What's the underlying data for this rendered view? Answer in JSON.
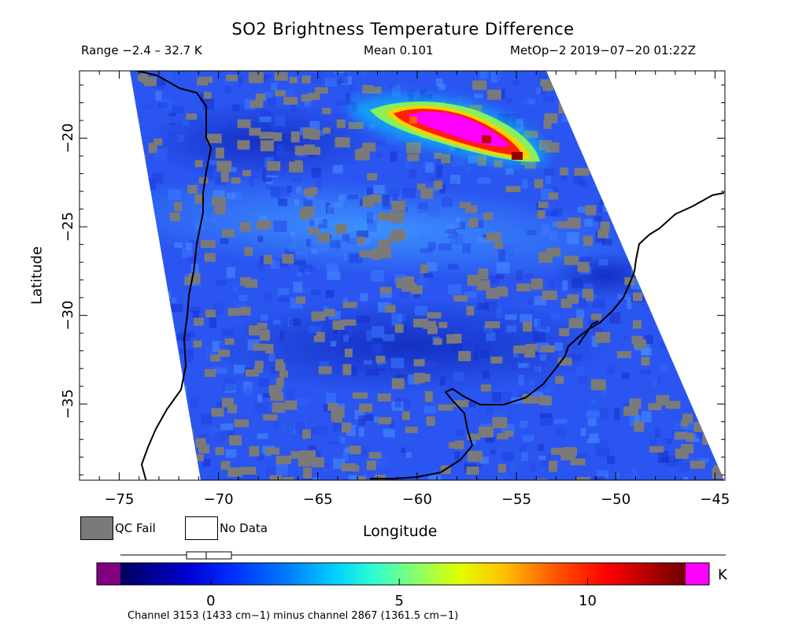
{
  "header": {
    "title": "SO2 Brightness Temperature Difference",
    "range": "Range −2.4 – 32.7 K",
    "mean": "Mean 0.101",
    "satellite": "MetOp−2 2019−07−20 01:22Z"
  },
  "axes": {
    "xlabel": "Longitude",
    "ylabel": "Latitude",
    "x_ticks": [
      "−75",
      "−70",
      "−65",
      "−60",
      "−55",
      "−50",
      "−45"
    ],
    "y_ticks": [
      "−20",
      "−25",
      "−30",
      "−35"
    ],
    "lon_range": [
      -77,
      -44.5
    ],
    "lat_range": [
      -39.3,
      -16.2
    ]
  },
  "legend": {
    "qc_fail": "QC Fail",
    "no_data": "No Data",
    "qc_color": "#7a7a7a",
    "no_data_color": "#ffffff"
  },
  "colorbar": {
    "unit": "K",
    "ticks": [
      "0",
      "5",
      "10"
    ],
    "tick_values": [
      0,
      5,
      10
    ],
    "range": [
      -2.4,
      12.6
    ],
    "under_color": "#800080",
    "over_color": "#ff00ff"
  },
  "footnote": "Channel 3153 (1433 cm−1) minus channel 2867 (1361.5 cm−1)",
  "colors": {
    "background_blue": "#2a55f0",
    "plume_peak": "#ff00ff",
    "coastline": "#000000"
  }
}
